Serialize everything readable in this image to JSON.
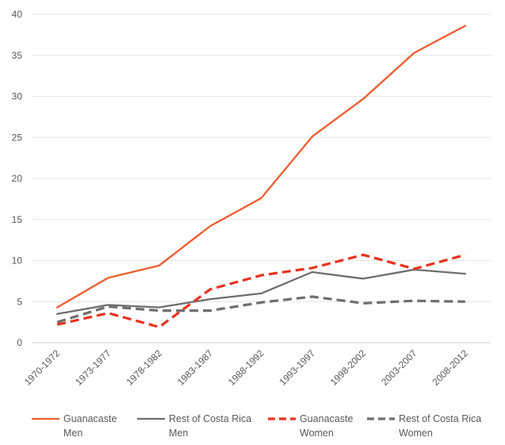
{
  "chart_data": {
    "type": "line",
    "title": "",
    "xlabel": "",
    "ylabel": "",
    "categories": [
      "1970-1972",
      "1973-1977",
      "1978-1982",
      "1983-1987",
      "1988-1992",
      "1993-1997",
      "1998-2002",
      "2003-2007",
      "2008-2012"
    ],
    "ylim": [
      0,
      40
    ],
    "yticks": [
      0,
      5,
      10,
      15,
      20,
      25,
      30,
      35,
      40
    ],
    "grid": true,
    "legend_position": "bottom",
    "series": [
      {
        "name": "Guanacaste Men",
        "label_lines": [
          "Guanacaste",
          "Men"
        ],
        "color": "#ED5C2E",
        "dashed": false,
        "values": [
          4.3,
          7.9,
          9.4,
          14.2,
          17.6,
          25.1,
          29.7,
          35.3,
          38.6
        ]
      },
      {
        "name": "Rest of Costa Rica Men",
        "label_lines": [
          "Rest of Costa Rica",
          "Men"
        ],
        "color": "#6E6E6E",
        "dashed": false,
        "values": [
          3.5,
          4.6,
          4.3,
          5.3,
          6.0,
          8.6,
          7.8,
          8.9,
          8.4
        ]
      },
      {
        "name": "Guanacaste Women",
        "label_lines": [
          "Guanacaste",
          "Women"
        ],
        "color": "#E8321E",
        "dashed": true,
        "values": [
          2.2,
          3.6,
          1.9,
          6.5,
          8.2,
          9.1,
          10.7,
          9.0,
          10.7
        ]
      },
      {
        "name": "Rest of Costa Rica Women",
        "label_lines": [
          "Rest of Costa Rica",
          "Women"
        ],
        "color": "#6E6E6E",
        "dashed": true,
        "values": [
          2.5,
          4.4,
          3.9,
          3.9,
          4.9,
          5.6,
          4.8,
          5.1,
          5.0
        ]
      }
    ]
  }
}
